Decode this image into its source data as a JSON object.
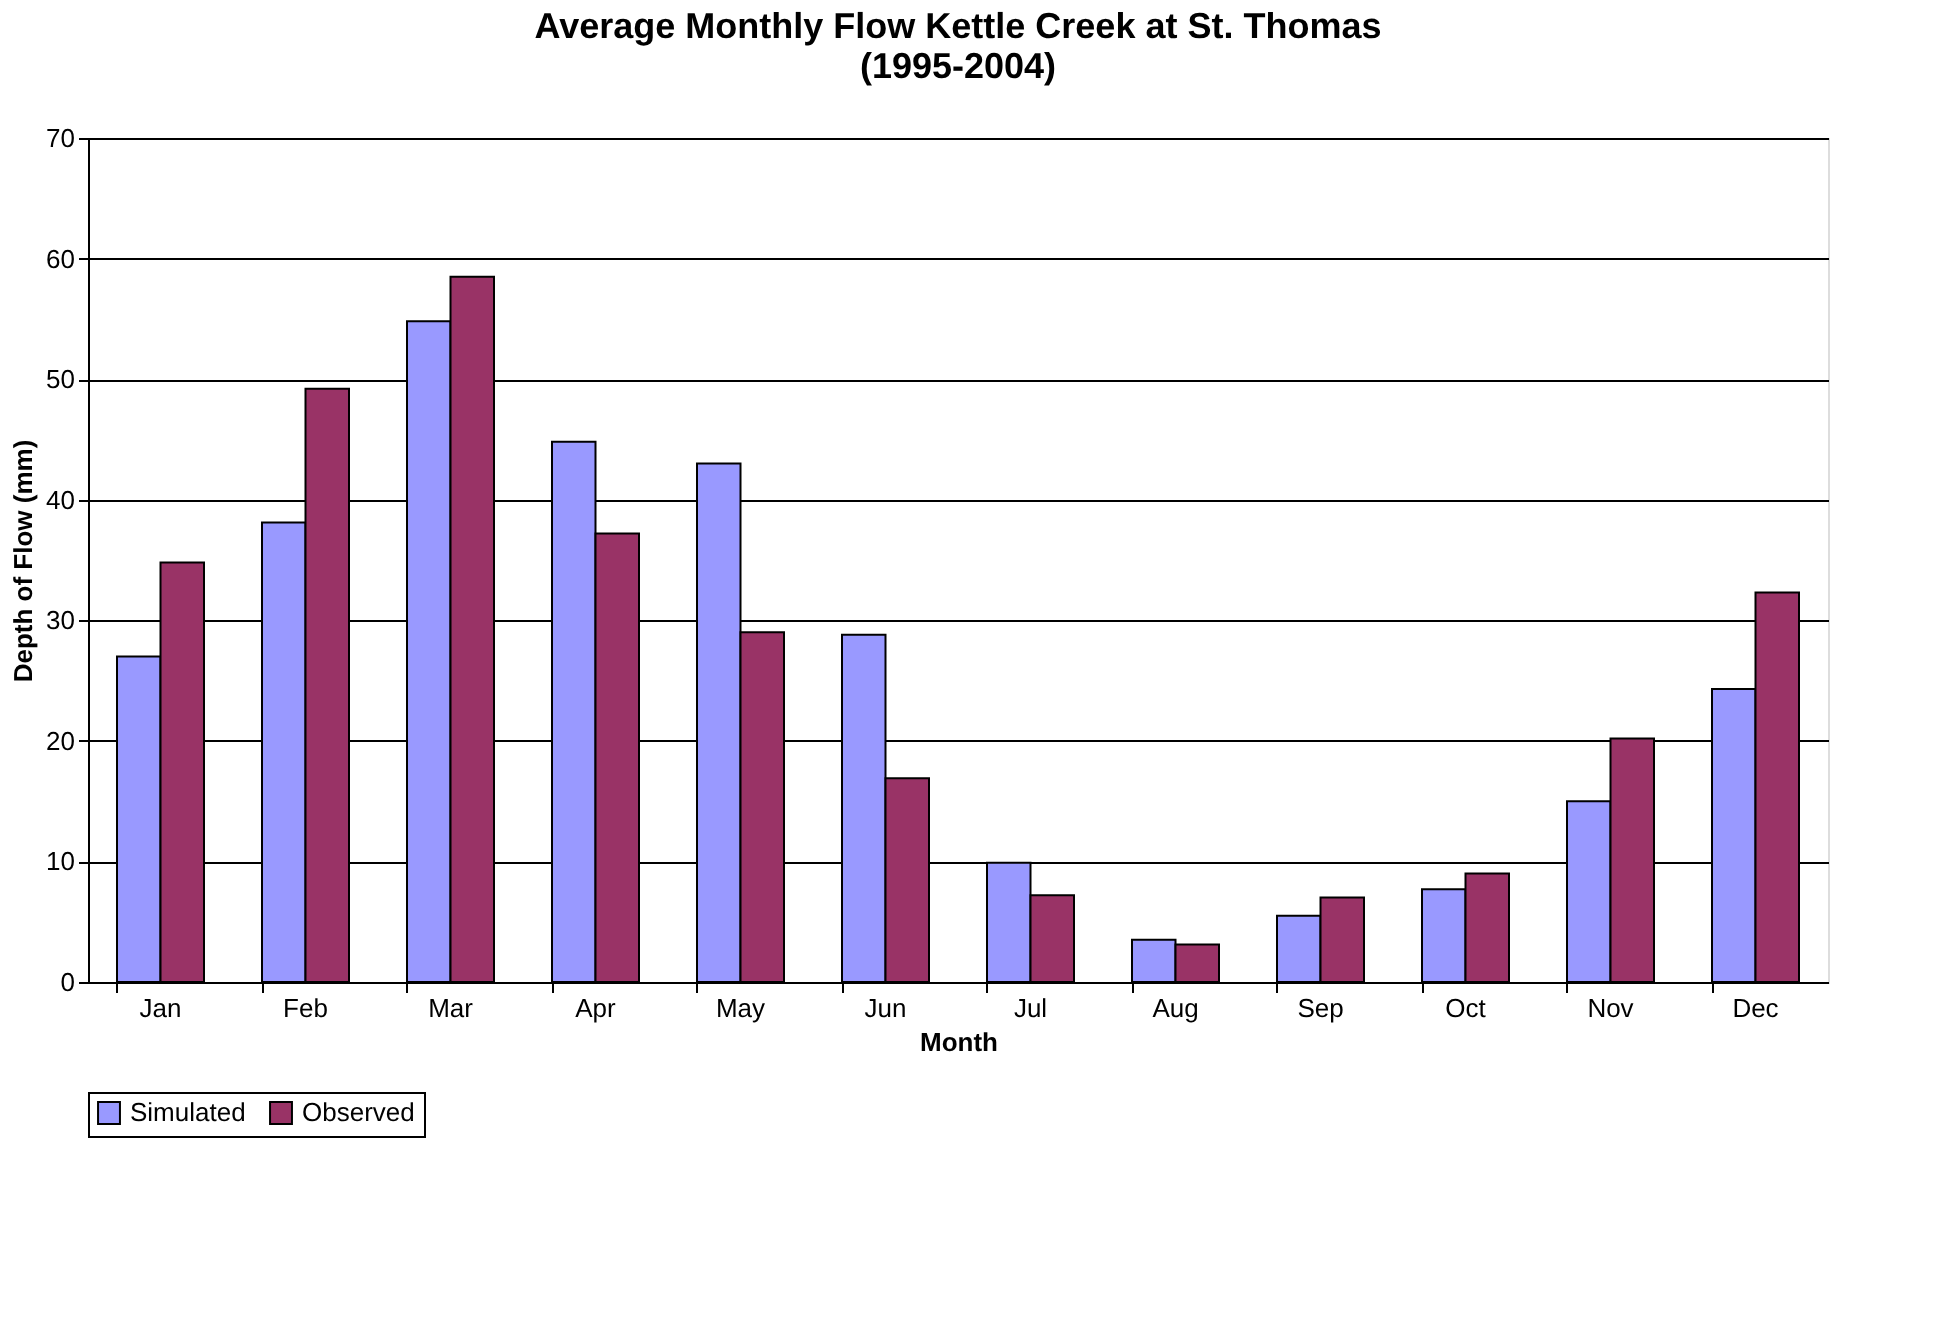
{
  "chart_data": {
    "type": "bar",
    "title": "Average Monthly Flow Kettle Creek at St. Thomas",
    "subtitle": "(1995-2004)",
    "xlabel": "Month",
    "ylabel": "Depth of Flow (mm)",
    "categories": [
      "Jan",
      "Feb",
      "Mar",
      "Apr",
      "May",
      "Jun",
      "Jul",
      "Aug",
      "Sep",
      "Oct",
      "Nov",
      "Dec"
    ],
    "series": [
      {
        "name": "Simulated",
        "color": "#9999ff",
        "values": [
          27.0,
          38.1,
          54.8,
          44.8,
          43.0,
          28.8,
          9.9,
          3.5,
          5.5,
          7.7,
          15.0,
          24.3
        ]
      },
      {
        "name": "Observed",
        "color": "#993366",
        "values": [
          34.8,
          49.2,
          58.5,
          37.2,
          29.0,
          16.9,
          7.2,
          3.1,
          7.0,
          9.0,
          20.2,
          32.3
        ]
      }
    ],
    "ylim": [
      0,
      70
    ],
    "yticks": [
      0,
      10,
      20,
      30,
      40,
      50,
      60,
      70
    ],
    "grid": "y",
    "legend": "bottom"
  }
}
